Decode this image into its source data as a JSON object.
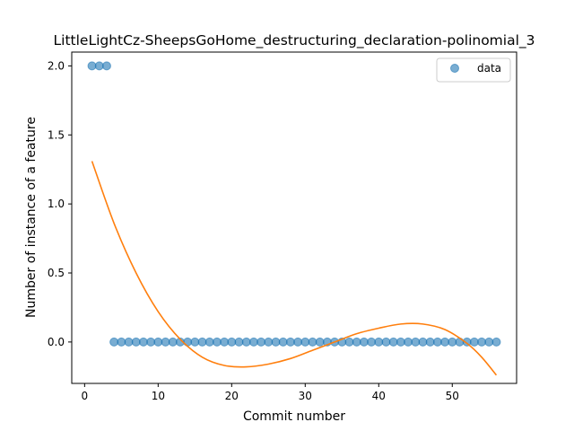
{
  "chart_data": {
    "type": "scatter",
    "title": "LittleLightCz-SheepsGoHome_destructuring_declaration-polinomial_3",
    "xlabel": "Commit number",
    "ylabel": "Number of instance of a feature",
    "xlim": [
      -1.75,
      58.75
    ],
    "ylim": [
      -0.3,
      2.1
    ],
    "xticks": [
      0,
      10,
      20,
      30,
      40,
      50
    ],
    "yticks": [
      0.0,
      0.5,
      1.0,
      1.5,
      2.0
    ],
    "xtick_labels": [
      "0",
      "10",
      "20",
      "30",
      "40",
      "50"
    ],
    "ytick_labels": [
      "0.0",
      "0.5",
      "1.0",
      "1.5",
      "2.0"
    ],
    "legend": {
      "position": "upper right",
      "entries": [
        "data"
      ]
    },
    "series": [
      {
        "name": "data",
        "kind": "scatter",
        "color": "#1f77b4",
        "x": [
          1,
          2,
          3,
          4,
          5,
          6,
          7,
          8,
          9,
          10,
          11,
          12,
          13,
          14,
          15,
          16,
          17,
          18,
          19,
          20,
          21,
          22,
          23,
          24,
          25,
          26,
          27,
          28,
          29,
          30,
          31,
          32,
          33,
          34,
          35,
          36,
          37,
          38,
          39,
          40,
          41,
          42,
          43,
          44,
          45,
          46,
          47,
          48,
          49,
          50,
          51,
          52,
          53,
          54,
          55,
          56
        ],
        "y": [
          2,
          2,
          2,
          0,
          0,
          0,
          0,
          0,
          0,
          0,
          0,
          0,
          0,
          0,
          0,
          0,
          0,
          0,
          0,
          0,
          0,
          0,
          0,
          0,
          0,
          0,
          0,
          0,
          0,
          0,
          0,
          0,
          0,
          0,
          0,
          0,
          0,
          0,
          0,
          0,
          0,
          0,
          0,
          0,
          0,
          0,
          0,
          0,
          0,
          0,
          0,
          0,
          0,
          0,
          0,
          0
        ]
      },
      {
        "kind": "line",
        "color": "#ff7f0e",
        "x": [
          1,
          4,
          7,
          10,
          13,
          16,
          19,
          22,
          25,
          28,
          31,
          34,
          37,
          40,
          43,
          46,
          49,
          52,
          54,
          56
        ],
        "y": [
          1.31,
          0.86,
          0.5,
          0.22,
          0.02,
          -0.11,
          -0.17,
          -0.18,
          -0.16,
          -0.12,
          -0.06,
          0.0,
          0.06,
          0.1,
          0.13,
          0.13,
          0.09,
          -0.01,
          -0.11,
          -0.24
        ]
      }
    ]
  }
}
